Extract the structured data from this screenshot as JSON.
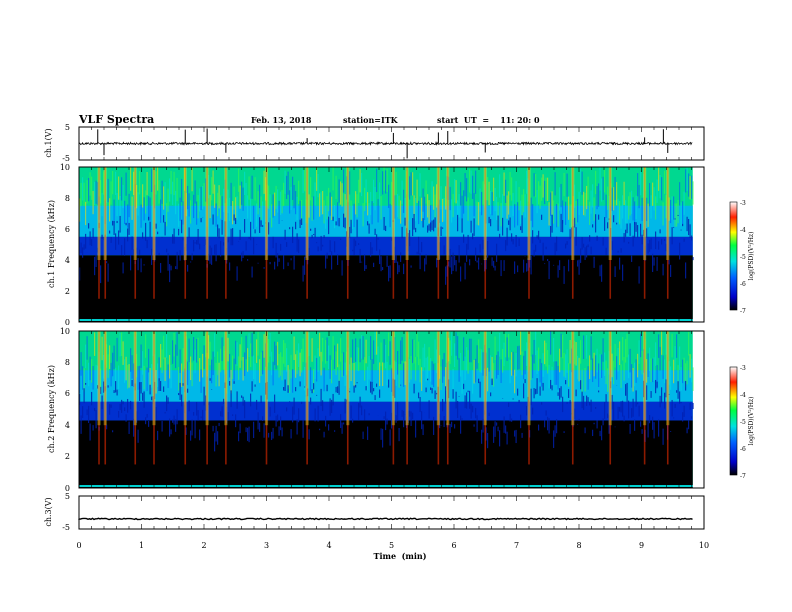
{
  "header": {
    "title": "VLF Spectra",
    "date": "Feb. 13, 2018",
    "station": "station=ITK",
    "start": "start  UT  =    11: 20: 0"
  },
  "chart_data": [
    {
      "type": "line",
      "title": "VLF Spectra",
      "ylabel": "ch.1(V)",
      "xlim": [
        0,
        10
      ],
      "ylim": [
        -5,
        5
      ],
      "yticks": [
        "5",
        "-5"
      ],
      "description_values": {
        "baseline": 0.0,
        "data_end_min": 9.82
      },
      "spike_times_min": [
        0.3,
        0.4,
        1.7,
        2.05,
        2.35,
        3.65,
        5.03,
        5.25,
        5.75,
        5.9,
        6.5,
        9.05,
        9.35,
        9.42
      ],
      "color": "#000000"
    },
    {
      "type": "heatmap",
      "ylabel": "ch.1 Frequency (kHz)",
      "xlim": [
        0,
        10
      ],
      "ylim": [
        0,
        10
      ],
      "yticks": [
        "0",
        "2",
        "4",
        "6",
        "8",
        "10"
      ],
      "colorbar": {
        "label": "log(PSD)(V²/Hz)",
        "range": [
          -7,
          -3
        ],
        "ticks": [
          "-3",
          "-4",
          "-5",
          "-6",
          "-7"
        ]
      },
      "burst_times_min": [
        0.32,
        0.42,
        0.9,
        1.2,
        1.7,
        2.05,
        2.35,
        3.0,
        3.65,
        4.3,
        5.03,
        5.25,
        5.75,
        5.9,
        6.5,
        7.2,
        7.9,
        8.5,
        9.05,
        9.42
      ]
    },
    {
      "type": "heatmap",
      "ylabel": "ch.2 Frequency (kHz)",
      "xlim": [
        0,
        10
      ],
      "ylim": [
        0,
        10
      ],
      "yticks": [
        "0",
        "2",
        "4",
        "6",
        "8",
        "10"
      ],
      "colorbar": {
        "label": "log(PSD)(V²/Hz)",
        "range": [
          -7,
          -3
        ],
        "ticks": [
          "-3",
          "-4",
          "-5",
          "-6",
          "-7"
        ]
      },
      "burst_times_min": [
        0.32,
        0.42,
        0.9,
        1.2,
        1.7,
        2.05,
        2.35,
        3.0,
        3.65,
        4.3,
        5.03,
        5.25,
        5.75,
        5.9,
        6.5,
        7.2,
        7.9,
        8.5,
        9.05,
        9.42
      ]
    },
    {
      "type": "line",
      "ylabel": "ch.3(V)",
      "xlabel": "Time  (min)",
      "xlim": [
        0,
        10
      ],
      "ylim": [
        -5,
        5
      ],
      "yticks": [
        "5",
        "-5"
      ],
      "xticks": [
        "0",
        "1",
        "2",
        "3",
        "4",
        "5",
        "6",
        "7",
        "8",
        "9",
        "10"
      ],
      "description_values": {
        "baseline": -2.0,
        "data_end_min": 9.82
      },
      "color": "#000000"
    }
  ]
}
